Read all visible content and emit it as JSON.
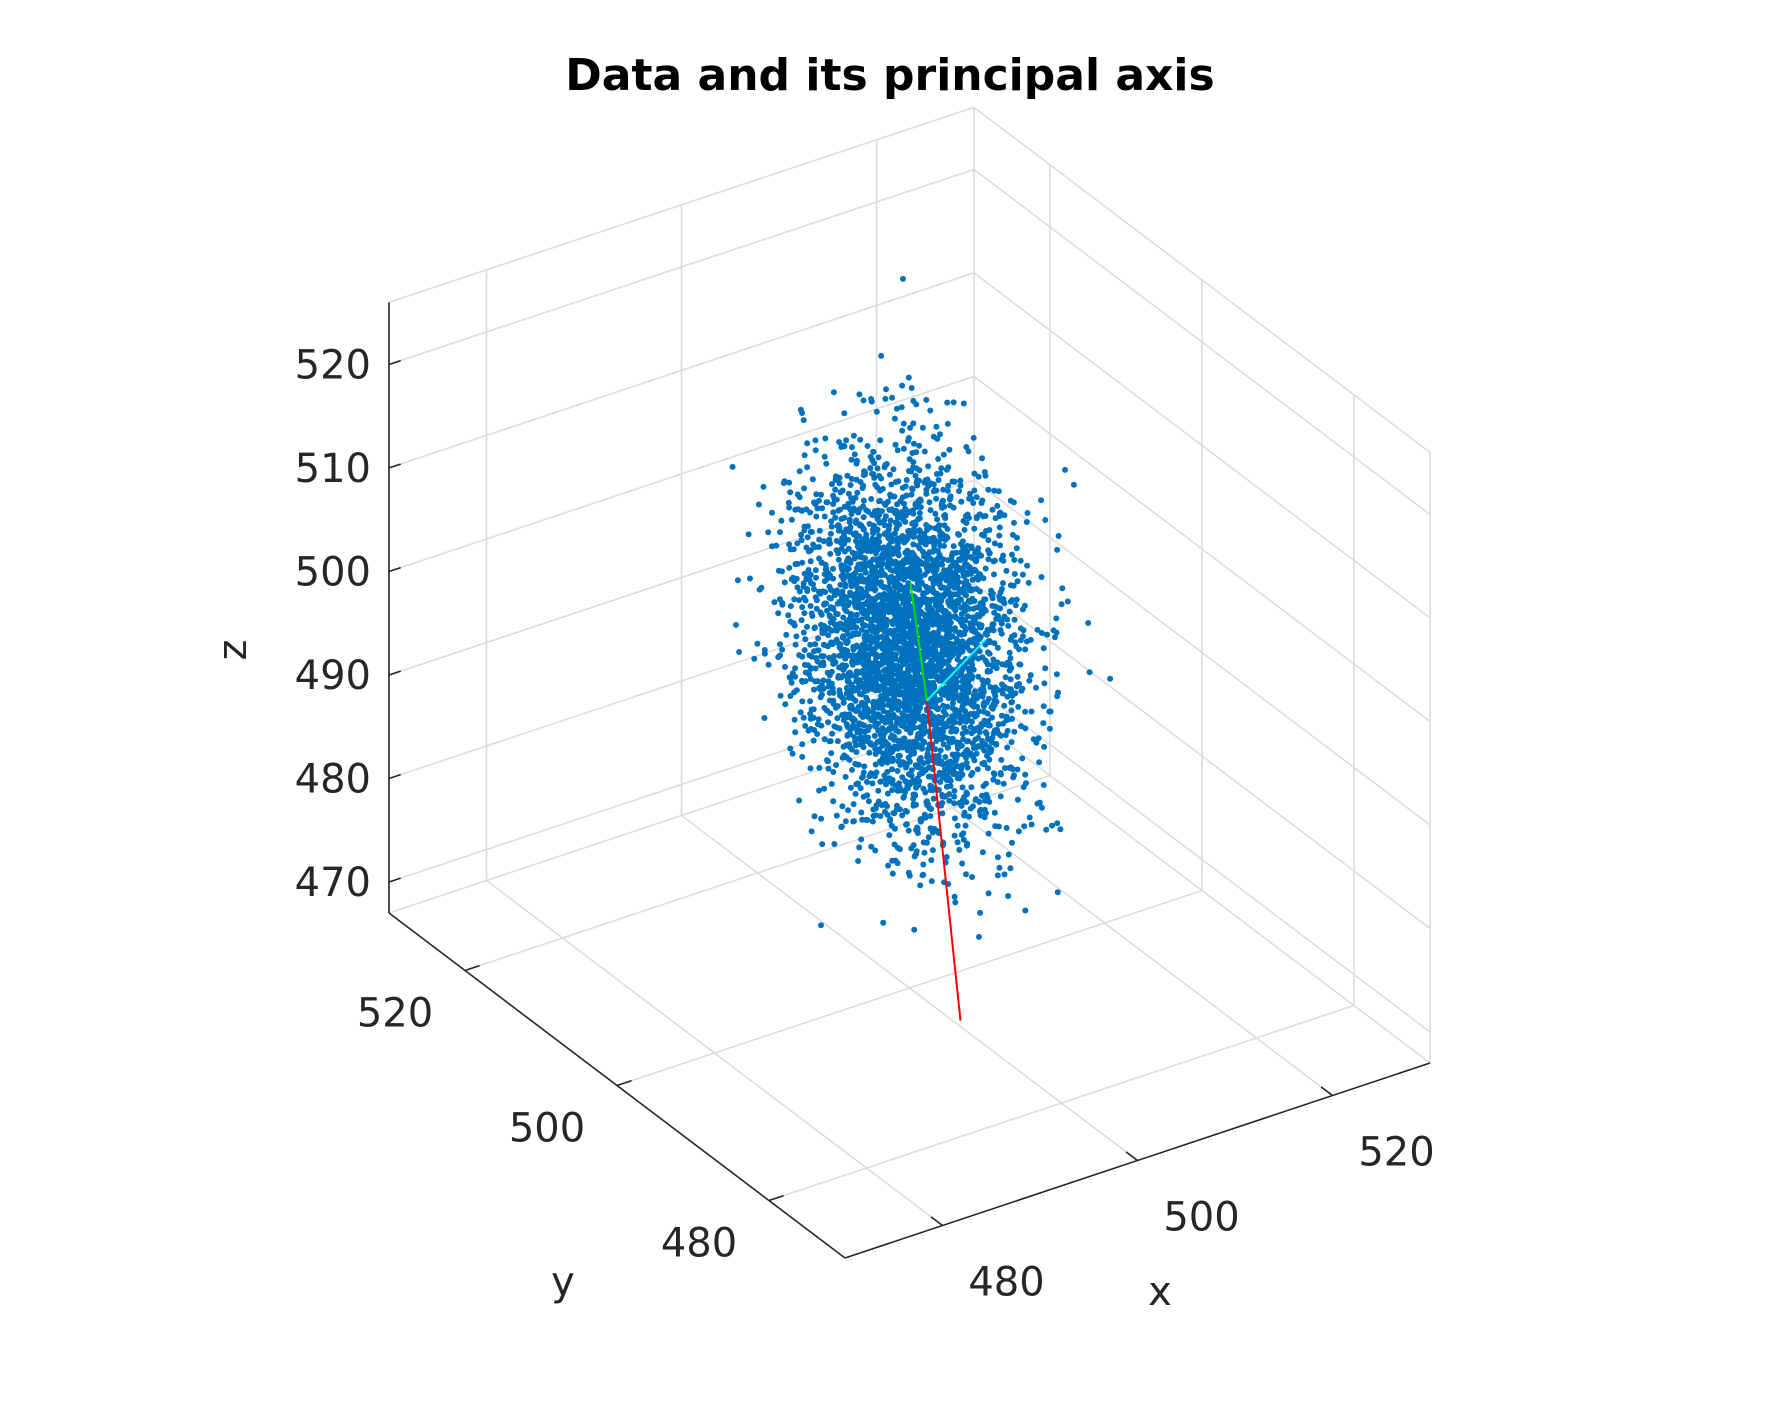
{
  "chart_data": {
    "type": "scatter",
    "title": "Data and its principal axis",
    "xlabel": "x",
    "ylabel": "y",
    "zlabel": "z",
    "x_ticks": [
      480,
      500,
      520
    ],
    "y_ticks": [
      480,
      500,
      520
    ],
    "z_ticks": [
      470,
      480,
      490,
      500,
      510,
      520
    ],
    "xlim": [
      470,
      530
    ],
    "ylim": [
      470,
      530
    ],
    "zlim": [
      467,
      526
    ],
    "grid": true,
    "view": "3d-oblique",
    "marker_color": "#0072BD",
    "point_cloud": {
      "center": [
        500,
        500,
        500
      ],
      "std": [
        3.7,
        5.1,
        8.0
      ],
      "count": 4000,
      "lattice": "integer grid with slight jitter"
    },
    "principal_axes": [
      {
        "color": "#ff0000",
        "from": [
          501,
          499,
          495
        ],
        "to": [
          502.5,
          496.5,
          465
        ]
      },
      {
        "color": "#00e000",
        "from": [
          501,
          499,
          495
        ],
        "to": [
          511,
          514,
          495
        ]
      },
      {
        "color": "#00ffff",
        "from": [
          501,
          499,
          495
        ],
        "to": [
          507,
          499,
          499
        ]
      }
    ]
  }
}
